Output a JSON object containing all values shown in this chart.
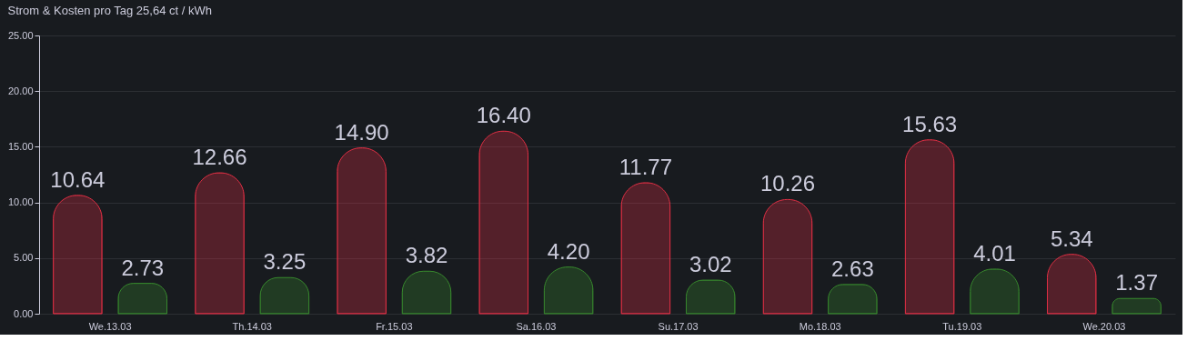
{
  "chart_data": {
    "type": "bar",
    "title": "Strom & Kosten pro Tag 25,64 ct / kWh",
    "categories": [
      "We.13.03",
      "Th.14.03",
      "Fr.15.03",
      "Sa.16.03",
      "Su.17.03",
      "Mo.18.03",
      "Tu.19.03",
      "We.20.03"
    ],
    "series": [
      {
        "color": "#e02f44",
        "values": [
          10.64,
          12.66,
          14.9,
          16.4,
          11.77,
          10.26,
          15.63,
          5.34
        ],
        "value_labels": [
          "10.64",
          "12.66",
          "14.90",
          "16.40",
          "11.77",
          "10.26",
          "15.63",
          "5.34"
        ]
      },
      {
        "color": "#37872d",
        "values": [
          2.73,
          3.25,
          3.82,
          4.2,
          3.02,
          2.63,
          4.01,
          1.37
        ],
        "value_labels": [
          "2.73",
          "3.25",
          "3.82",
          "4.20",
          "3.02",
          "2.63",
          "4.01",
          "1.37"
        ]
      }
    ],
    "ylim": [
      0,
      25
    ],
    "yticks": [
      {
        "value": 0,
        "label": "0.00"
      },
      {
        "value": 5,
        "label": "5.00"
      },
      {
        "value": 10,
        "label": "10.00"
      },
      {
        "value": 15,
        "label": "15.00"
      },
      {
        "value": 20,
        "label": "20.00"
      },
      {
        "value": 25,
        "label": "25.00"
      }
    ],
    "grid": "y",
    "legend": false
  }
}
